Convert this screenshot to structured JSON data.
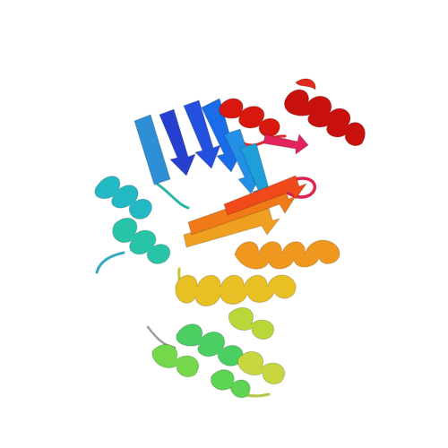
{
  "image": {
    "kind": "protein-cartoon-rendering",
    "background_color": "#ffffff",
    "palette": {
      "n_terminus_blue": "#2a3fd8",
      "blue": "#3b6cf0",
      "cyan": "#27b4c8",
      "teal": "#2fc9a0",
      "green": "#56d25a",
      "yellow_green": "#b9d43a",
      "yellow": "#e2c22b",
      "orange": "#f08a1f",
      "red_orange": "#ef4a1a",
      "c_terminus_red": "#d3140e",
      "coil_gray": "#9a9a9a"
    }
  }
}
